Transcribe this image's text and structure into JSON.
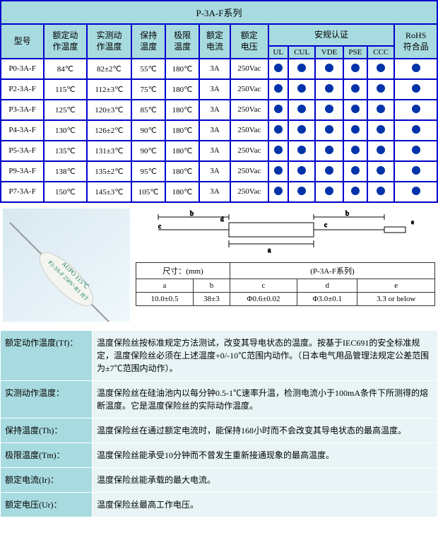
{
  "mainTable": {
    "title": "P-3A-F系列",
    "headers": {
      "model": "型号",
      "ratedTemp": "额定动作温度",
      "measuredTemp": "实测动作温度",
      "holdTemp": "保持温度",
      "limitTemp": "极限温度",
      "ratedCurrent": "额定电流",
      "ratedVoltage": "额定电压",
      "cert": "安规认证",
      "rohs": "RoHS符合品",
      "certCols": [
        "UL",
        "CUL",
        "VDE",
        "PSE",
        "CCC"
      ]
    },
    "rows": [
      {
        "model": "P0-3A-F",
        "rated": "84℃",
        "measured": "82±2℃",
        "hold": "55℃",
        "limit": "180℃",
        "current": "3A",
        "voltage": "250Vac"
      },
      {
        "model": "P2-3A-F",
        "rated": "115℃",
        "measured": "112±3℃",
        "hold": "75℃",
        "limit": "180℃",
        "current": "3A",
        "voltage": "250Vac"
      },
      {
        "model": "P3-3A-F",
        "rated": "125℃",
        "measured": "120±3℃",
        "hold": "85℃",
        "limit": "180℃",
        "current": "3A",
        "voltage": "250Vac"
      },
      {
        "model": "P4-3A-F",
        "rated": "130℃",
        "measured": "126±2℃",
        "hold": "90℃",
        "limit": "180℃",
        "current": "3A",
        "voltage": "250Vac"
      },
      {
        "model": "P5-3A-F",
        "rated": "135℃",
        "measured": "131±3℃",
        "hold": "90℃",
        "limit": "180℃",
        "current": "3A",
        "voltage": "250Vac"
      },
      {
        "model": "P9-3A-F",
        "rated": "138℃",
        "measured": "135±2℃",
        "hold": "95℃",
        "limit": "180℃",
        "current": "3A",
        "voltage": "250Vac"
      },
      {
        "model": "P7-3A-F",
        "rated": "150℃",
        "measured": "145±3℃",
        "hold": "105℃",
        "limit": "180℃",
        "current": "3A",
        "voltage": "250Vac"
      }
    ]
  },
  "dimTable": {
    "title1": "尺寸：(mm)",
    "title2": "(P-3A-F系列)",
    "cols": [
      "a",
      "b",
      "c",
      "d",
      "e"
    ],
    "vals": [
      "10.0±0.5",
      "38±3",
      "Φ0.6±0.02",
      "Φ3.0±0.1",
      "3.3 or below"
    ]
  },
  "photoLabel1": "AUPO 115℃",
  "photoLabel2": "P2-3A-F 250V~R1 JET",
  "descriptions": [
    {
      "label": "额定动作温度(Tf)：",
      "text": "温度保险丝按标准规定方法测试，改变其导电状态的温度。按基于IEC691的安全标准规定，温度保险丝必须在上述温度+0/-10℃范围内动作。（日本电气用品管理法规定公差范围为±7℃范围内动作）。"
    },
    {
      "label": "实测动作温度：",
      "text": "温度保险丝在硅油池内以每分钟0.5-1℃速率升温，检测电流小于100mA条件下所测得的熔断温度。它是温度保险丝的实际动作温度。"
    },
    {
      "label": "保持温度(Th)：",
      "text": "温度保险丝在通过额定电流时，能保持168小时而不会改变其导电状态的最高温度。"
    },
    {
      "label": "极限温度(Tm)：",
      "text": "温度保险丝能承受10分钟而不曾发生重新接通现象的最高温度。"
    },
    {
      "label": "额定电流(Ir)：",
      "text": "温度保险丝能承载的最大电流。"
    },
    {
      "label": "额定电压(Ur)：",
      "text": "温度保险丝最高工作电压。"
    }
  ]
}
